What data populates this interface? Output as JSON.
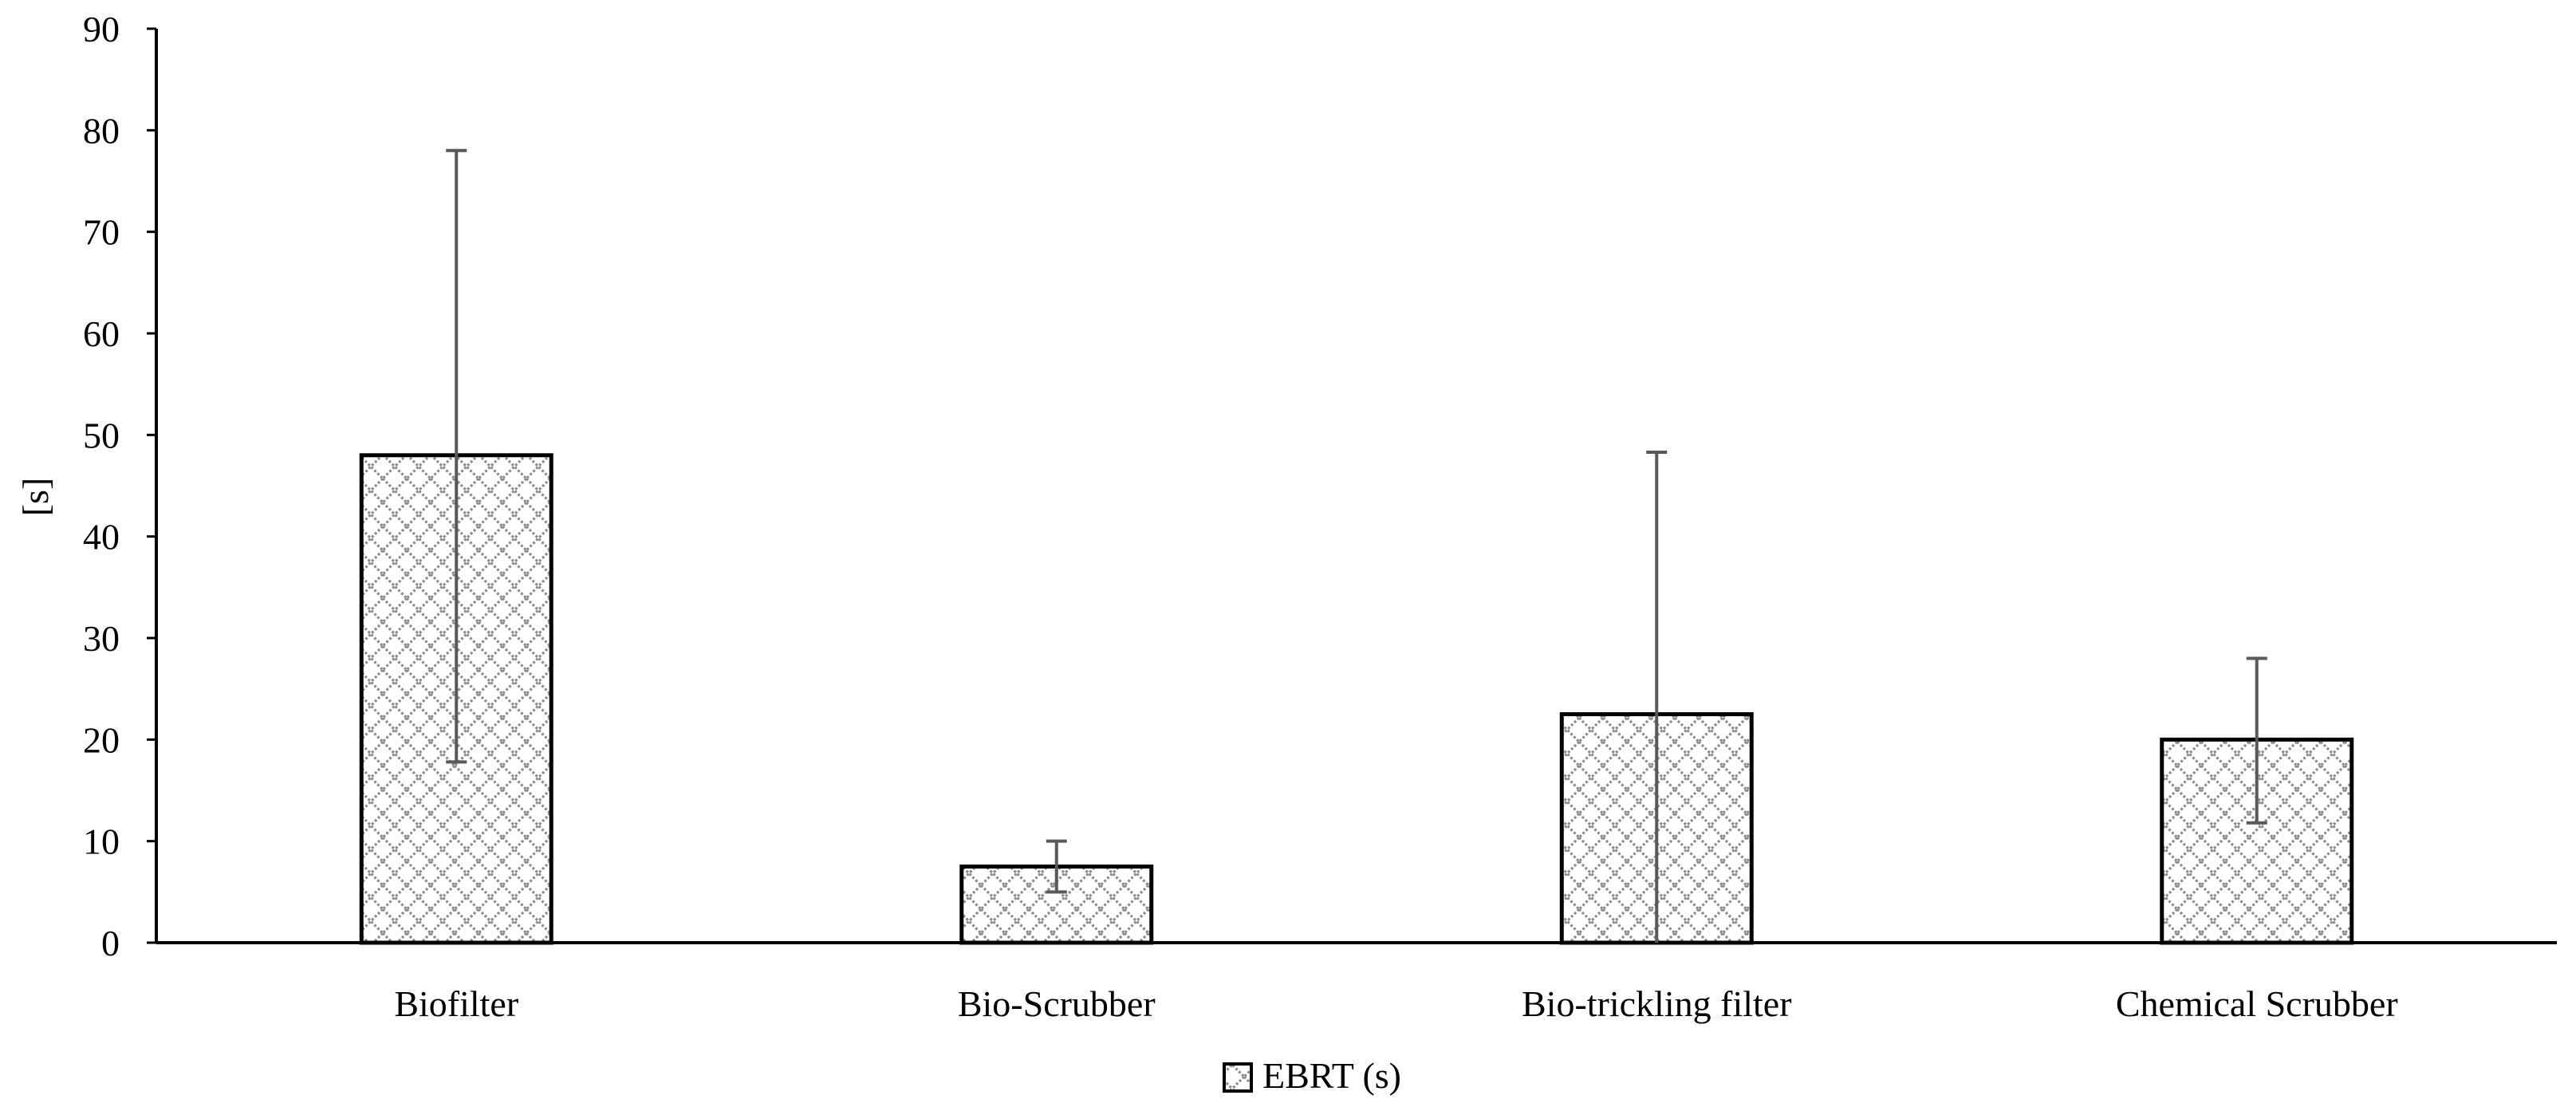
{
  "chart_data": {
    "type": "bar",
    "categories": [
      "Biofilter",
      "Bio-Scrubber",
      "Bio-trickling filter",
      "Chemical Scrubber"
    ],
    "series": [
      {
        "name": "EBRT (s)",
        "values": [
          48,
          7.5,
          22.5,
          20
        ],
        "error_upper": [
          78,
          10,
          48.3,
          28
        ],
        "error_lower": [
          17.8,
          5,
          0,
          11.8
        ]
      }
    ],
    "ylabel": "[s]",
    "xlabel": "",
    "title": "",
    "ylim": [
      0,
      90
    ],
    "yticks": [
      0,
      10,
      20,
      30,
      40,
      50,
      60,
      70,
      80,
      90
    ],
    "grid": false,
    "legend_position": "bottom",
    "bar_pattern": "crosshatch",
    "colors": {
      "bar_fill": "#ffffff",
      "bar_stroke": "#000000",
      "hatch": "#8c8c8c",
      "error_bar": "#595959",
      "axis": "#000000"
    }
  }
}
